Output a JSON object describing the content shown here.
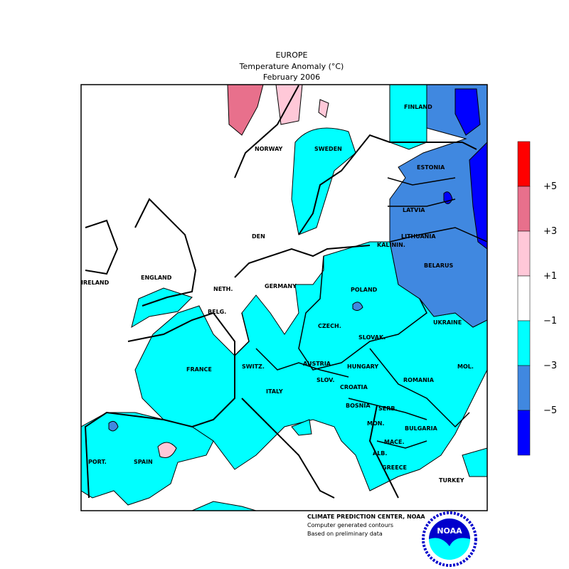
{
  "header": {
    "region": "EUROPE",
    "title": "Temperature Anomaly (°C)",
    "period": "February 2006"
  },
  "countries": [
    "FINLAND",
    "NORWAY",
    "SWEDEN",
    "ESTONIA",
    "LATVIA",
    "LITHUANIA",
    "KALININ.",
    "DEN",
    "BELARUS",
    "IRELAND",
    "ENGLAND",
    "NETH.",
    "GERMANY",
    "POLAND",
    "BELG.",
    "CZECH.",
    "SLOVAK.",
    "UKRAINE",
    "FRANCE",
    "SWITZ.",
    "AUSTRIA",
    "HUNGARY",
    "MOL.",
    "ROMANIA",
    "SLOV.",
    "CROATIA",
    "ITALY",
    "BOSNIA",
    "SERB.",
    "MON.",
    "BULGARIA",
    "MACE.",
    "ALB.",
    "GREECE",
    "PORT.",
    "SPAIN",
    "TURKEY"
  ],
  "legend": {
    "labels": [
      "+5",
      "+3",
      "+1",
      "−1",
      "−3",
      "−5"
    ],
    "colors": [
      "#ff0000",
      "#e8708c",
      "#ffc8d8",
      "#ffffff",
      "#00ffff",
      "#4088e0",
      "#0000ff"
    ]
  },
  "credits": {
    "line1": "CLIMATE PREDICTION CENTER, NOAA",
    "line2": "Computer generated contours",
    "line3": "Based on preliminary data",
    "logo_text": "NOAA"
  }
}
